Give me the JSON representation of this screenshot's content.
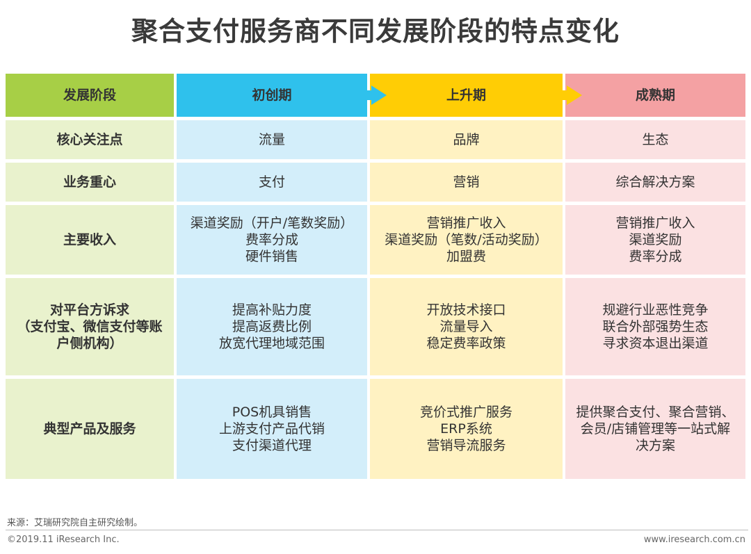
{
  "title": "聚合支付服务商不同发展阶段的特点变化",
  "header": [
    "发展阶段",
    "初创期",
    "上升期",
    "成熟期"
  ],
  "rows": [
    {
      "label": [
        "核心关注点"
      ],
      "cols": [
        [
          "流量"
        ],
        [
          "品牌"
        ],
        [
          "生态"
        ]
      ]
    },
    {
      "label": [
        "业务重心"
      ],
      "cols": [
        [
          "支付"
        ],
        [
          "营销"
        ],
        [
          "综合解决方案"
        ]
      ]
    },
    {
      "label": [
        "主要收入"
      ],
      "cols": [
        [
          "渠道奖励（开户/笔数奖励）",
          "费率分成",
          "硬件销售"
        ],
        [
          "营销推广收入",
          "渠道奖励（笔数/活动奖励）",
          "加盟费"
        ],
        [
          "营销推广收入",
          "渠道奖励",
          "费率分成"
        ]
      ]
    },
    {
      "label": [
        "对平台方诉求",
        "（支付宝、微信支付等账",
        "户侧机构）"
      ],
      "cols": [
        [
          "提高补贴力度",
          "提高返费比例",
          "放宽代理地域范围"
        ],
        [
          "开放技术接口",
          "流量导入",
          "稳定费率政策"
        ],
        [
          "规避行业恶性竞争",
          "联合外部强势生态",
          "寻求资本退出渠道"
        ]
      ]
    },
    {
      "label": [
        "典型产品及服务"
      ],
      "cols": [
        [
          "POS机具销售",
          "上游支付产品代销",
          "支付渠道代理"
        ],
        [
          "竞价式推广服务",
          "ERP系统",
          "营销导流服务"
        ],
        [
          "提供聚合支付、聚合营销、",
          "会员/店铺管理等一站式解",
          "决方案"
        ]
      ]
    }
  ],
  "source": "来源：艾瑞研究院自主研究绘制。",
  "footer_left": "©2019.11 iResearch Inc.",
  "footer_right": "www.iresearch.com.cn",
  "colors": {
    "stage_green": "#a7cf46",
    "early_blue": "#2fc1ec",
    "rising_yellow": "#ffcd05",
    "mature_pink": "#f4a1a3"
  }
}
